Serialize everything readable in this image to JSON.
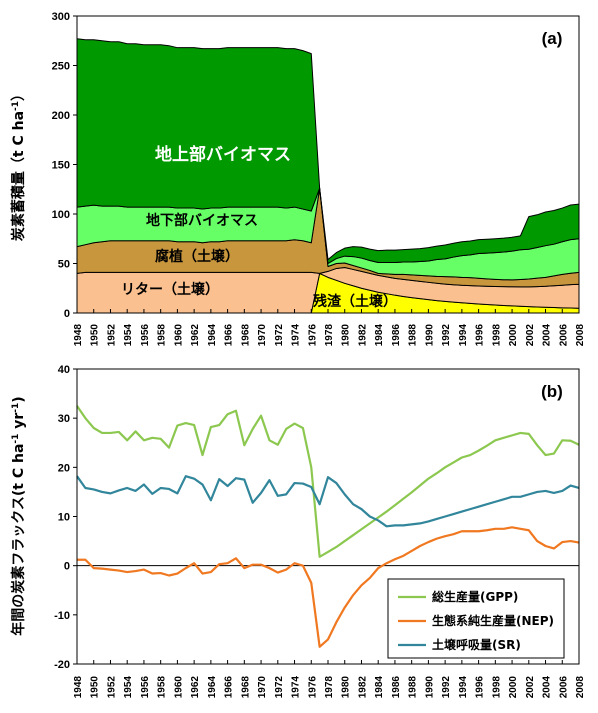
{
  "chart_data": [
    {
      "panel": "(a)",
      "type": "area",
      "stacked": true,
      "ylabel": "炭素蓄積量（t C ha⁻¹）",
      "ylabel_main": "炭素蓄積量（",
      "ylabel_unit": "t C ha",
      "ylabel_sup": "-1",
      "ylabel_close": "）",
      "ylim": [
        0,
        300
      ],
      "yticks": [
        0,
        50,
        100,
        150,
        200,
        250,
        300
      ],
      "x": [
        1948,
        1949,
        1950,
        1951,
        1952,
        1953,
        1954,
        1955,
        1956,
        1957,
        1958,
        1959,
        1960,
        1961,
        1962,
        1963,
        1964,
        1965,
        1966,
        1967,
        1968,
        1969,
        1970,
        1971,
        1972,
        1973,
        1974,
        1975,
        1976,
        1977,
        1978,
        1979,
        1980,
        1981,
        1982,
        1983,
        1984,
        1985,
        1986,
        1987,
        1988,
        1989,
        1990,
        1991,
        1992,
        1993,
        1994,
        1995,
        1996,
        1997,
        1998,
        1999,
        2000,
        2001,
        2002,
        2003,
        2004,
        2005,
        2006,
        2007,
        2008
      ],
      "xticks": [
        1948,
        1950,
        1952,
        1954,
        1956,
        1958,
        1960,
        1962,
        1964,
        1966,
        1968,
        1970,
        1972,
        1974,
        1976,
        1978,
        1980,
        1982,
        1984,
        1986,
        1988,
        1990,
        1992,
        1994,
        1996,
        1998,
        2000,
        2002,
        2004,
        2006,
        2008
      ],
      "series": [
        {
          "name": "残渣（土壌）",
          "color": "#ffff00",
          "values": [
            0,
            0,
            0,
            0,
            0,
            0,
            0,
            0,
            0,
            0,
            0,
            0,
            0,
            0,
            0,
            0,
            0,
            0,
            0,
            0,
            0,
            0,
            0,
            0,
            0,
            0,
            0,
            0,
            0,
            40,
            36,
            33,
            30,
            27.5,
            25,
            23,
            21,
            19.5,
            18,
            16.7,
            15.5,
            14.5,
            13.5,
            12.5,
            11.7,
            11,
            10.3,
            9.7,
            9.1,
            8.6,
            8.1,
            7.6,
            7.2,
            6.8,
            6.4,
            6.1,
            5.8,
            5.5,
            5.2,
            5,
            4.8
          ]
        },
        {
          "name": "リター（土壌）",
          "color": "#fac090",
          "values": [
            40,
            41,
            41,
            41,
            41,
            41,
            41,
            41,
            41,
            41,
            41,
            41,
            41,
            41,
            41,
            41,
            41,
            41,
            41,
            41,
            41,
            41,
            41,
            41,
            41,
            41,
            41,
            41,
            41,
            0,
            6,
            12,
            16,
            16.5,
            17,
            17,
            17,
            17,
            17,
            17.3,
            17.5,
            17.5,
            17.5,
            17.5,
            17.5,
            17.5,
            17.7,
            18,
            18.2,
            18.4,
            18.7,
            19,
            19.3,
            19.6,
            20,
            20.6,
            21.2,
            22,
            22.8,
            23.6,
            24.2
          ]
        },
        {
          "name": "腐植（土壌）",
          "color": "#c8963c",
          "values": [
            27,
            28,
            30,
            31,
            32,
            32,
            32,
            32,
            32,
            32,
            32,
            32,
            31,
            31,
            31,
            30,
            31,
            31,
            32,
            32,
            32,
            32,
            32,
            32,
            32,
            32,
            33,
            32,
            30,
            86,
            5,
            5,
            4.5,
            4,
            3.5,
            3,
            2,
            3,
            4,
            5,
            5.5,
            6,
            6.5,
            7,
            7.5,
            8,
            8,
            8,
            7.8,
            7.5,
            7.2,
            7,
            7,
            7.5,
            8,
            8.5,
            9,
            10,
            11,
            11.5,
            12
          ]
        },
        {
          "name": "地下部バイオマス",
          "color": "#66ff66",
          "values": [
            40,
            39,
            38,
            36,
            35,
            35,
            34,
            34,
            34,
            34,
            34,
            34,
            34,
            34,
            34,
            34,
            34,
            34,
            34,
            34,
            34,
            34,
            34,
            34,
            34,
            33,
            33,
            32,
            32,
            0,
            3,
            5,
            7,
            9,
            10,
            10,
            11,
            11.5,
            12,
            12.5,
            13,
            14,
            15,
            17,
            18,
            20,
            22,
            23,
            25,
            26,
            27,
            28,
            29,
            30,
            30,
            31,
            32,
            32,
            33,
            34,
            34
          ]
        },
        {
          "name": "地上部バイオマス",
          "color": "#009900",
          "values": [
            170,
            168,
            167,
            167,
            166,
            166,
            165,
            165,
            164,
            164,
            164,
            163,
            162,
            162,
            162,
            162,
            161,
            161,
            161,
            161,
            161,
            161,
            161,
            161,
            161,
            161,
            160,
            160,
            159,
            0,
            4,
            6,
            8,
            10,
            11,
            11.5,
            12,
            12.5,
            12.5,
            12.5,
            13,
            13,
            13.5,
            13.5,
            14,
            14,
            14,
            14,
            14,
            14,
            14,
            14,
            14,
            14,
            33,
            33,
            34,
            34,
            34,
            35,
            35
          ]
        }
      ],
      "labels": {
        "panel": "(a)",
        "above": "地上部バイオマス",
        "below": "地下部バイオマス",
        "humus": "腐植（土壌）",
        "litter": "リター（土壌）",
        "residue": "残渣（土壌）"
      }
    },
    {
      "panel": "(b)",
      "type": "line",
      "ylabel": "年間の炭素フラックス(t C ha⁻¹ yr⁻¹)",
      "ylabel_main": "年間の炭素フラックス(",
      "ylabel_unit1": "t C ha",
      "ylabel_sup1": "-1",
      "ylabel_unit2": " yr",
      "ylabel_sup2": "-1",
      "ylabel_close": ")",
      "ylim": [
        -20,
        40
      ],
      "yticks": [
        -20,
        -10,
        0,
        10,
        20,
        30,
        40
      ],
      "x": [
        1948,
        1949,
        1950,
        1951,
        1952,
        1953,
        1954,
        1955,
        1956,
        1957,
        1958,
        1959,
        1960,
        1961,
        1962,
        1963,
        1964,
        1965,
        1966,
        1967,
        1968,
        1969,
        1970,
        1971,
        1972,
        1973,
        1974,
        1975,
        1976,
        1977,
        1978,
        1979,
        1980,
        1981,
        1982,
        1983,
        1984,
        1985,
        1986,
        1987,
        1988,
        1989,
        1990,
        1991,
        1992,
        1993,
        1994,
        1995,
        1996,
        1997,
        1998,
        1999,
        2000,
        2001,
        2002,
        2003,
        2004,
        2005,
        2006,
        2007,
        2008
      ],
      "xticks": [
        1948,
        1950,
        1952,
        1954,
        1956,
        1958,
        1960,
        1962,
        1964,
        1966,
        1968,
        1970,
        1972,
        1974,
        1976,
        1978,
        1980,
        1982,
        1984,
        1986,
        1988,
        1990,
        1992,
        1994,
        1996,
        1998,
        2000,
        2002,
        2004,
        2006,
        2008
      ],
      "legend_position": "bottom-right",
      "series": [
        {
          "name": "総生産量(GPP)",
          "color": "#8cc850",
          "values": [
            32.5,
            30,
            28,
            27,
            27,
            27.2,
            25.5,
            27.3,
            25.5,
            26,
            25.8,
            24,
            28.5,
            29,
            28.6,
            22.5,
            28.2,
            28.6,
            30.8,
            31.5,
            24.5,
            27.8,
            30.5,
            25.5,
            24.6,
            27.8,
            28.9,
            28,
            20,
            1.8,
            2.8,
            3.8,
            5,
            6.2,
            7.4,
            8.6,
            9.8,
            11,
            12.3,
            13.6,
            14.9,
            16.3,
            17.7,
            18.8,
            20,
            21,
            22,
            22.5,
            23.4,
            24.4,
            25.5,
            26,
            26.5,
            27,
            26.8,
            24.5,
            22.5,
            22.8,
            25.5,
            25.4,
            24.6
          ]
        },
        {
          "name": "生態系純生産量(NEP)",
          "color": "#f07820",
          "values": [
            1.2,
            1.2,
            -0.5,
            -0.6,
            -0.8,
            -1,
            -1.3,
            -1.1,
            -0.8,
            -1.6,
            -1.5,
            -2,
            -1.6,
            -0.5,
            0.5,
            -1.6,
            -1.3,
            0.3,
            0.5,
            1.5,
            -0.5,
            0.2,
            0.2,
            -0.5,
            -1.4,
            -0.8,
            0.5,
            0,
            -3.5,
            -16.5,
            -15,
            -11.5,
            -8.5,
            -6,
            -4,
            -2.5,
            -0.5,
            0.5,
            1.3,
            2,
            3,
            4,
            4.8,
            5.5,
            6,
            6.4,
            7,
            7,
            7,
            7.2,
            7.5,
            7.5,
            7.8,
            7.5,
            7.2,
            5,
            4,
            3.5,
            4.8,
            5,
            4.7
          ]
        },
        {
          "name": "土壌呼吸量(SR)",
          "color": "#31869b",
          "values": [
            18.2,
            15.8,
            15.5,
            15,
            14.7,
            15.3,
            15.8,
            15.2,
            16.5,
            14.6,
            15.8,
            15.6,
            14.7,
            18.2,
            17.7,
            16.5,
            13.3,
            17.6,
            16.2,
            17.8,
            17.5,
            12.8,
            14.8,
            17.4,
            14.2,
            14.5,
            16.8,
            16.7,
            16,
            12.5,
            18,
            16.8,
            14.5,
            12.5,
            11.5,
            10,
            9.2,
            8,
            8.2,
            8.2,
            8.4,
            8.6,
            9,
            9.5,
            10,
            10.5,
            11,
            11.5,
            12,
            12.5,
            13,
            13.5,
            14,
            14,
            14.5,
            15,
            15.2,
            14.8,
            15.2,
            16.3,
            15.8
          ]
        }
      ],
      "labels": {
        "panel": "(b)"
      }
    }
  ]
}
